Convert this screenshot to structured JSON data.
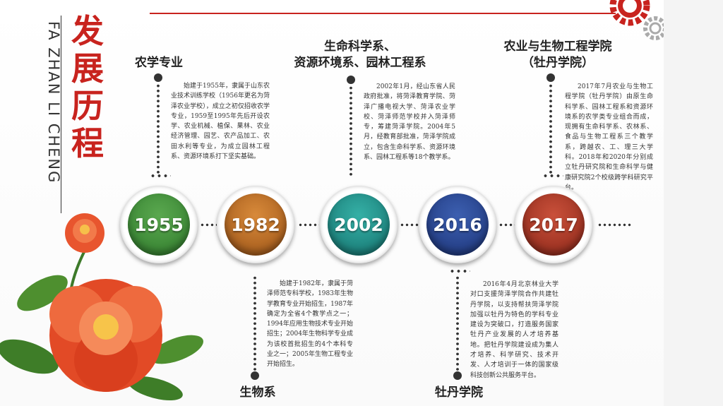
{
  "title": {
    "chinese": "发展历程",
    "pinyin": "FA ZHAN LI CHENG"
  },
  "colors": {
    "accent": "#c8231e",
    "y1955": "#3d8b37",
    "y1982": "#b5651d",
    "y2002": "#1e8e88",
    "y2016": "#25428f",
    "y2017": "#a33122"
  },
  "milestones": [
    {
      "year": "1955",
      "heading": "农学专业",
      "text": "始建于1955年，隶属于山东农业技术训练学校（1956年更名为菏泽农业学校），成立之初仅招收农学专业，1959至1995年先后开设农学、农业机械、植保、果林、农业经济管理、园艺、农产品加工、农田水利等专业，为成立园林工程系、资源环境系打下坚实基础。"
    },
    {
      "year": "1982",
      "heading": "生物系",
      "text": "始建于1982年，隶属于菏泽师范专科学校，1983年生物学教育专业开始招生，1987年确定为全省4个教学点之一；1994年应用生物技术专业开始招生；2004年生物科学专业成为该校首批招生的4个本科专业之一；2005年生物工程专业开始招生。"
    },
    {
      "year": "2002",
      "heading": "生命科学系、\n资源环境系、园林工程系",
      "heading_line1": "生命科学系、",
      "heading_line2": "资源环境系、园林工程系",
      "text": "2002年1月，经山东省人民政府批准，将菏泽教育学院、菏泽广播电视大学、菏泽农业学校、菏泽师范学校并入菏泽师专，筹建菏泽学院。2004年5月，经教育部批准，菏泽学院成立，包含生命科学系、资源环境系、园林工程系等18个教学系。"
    },
    {
      "year": "2016",
      "heading": "牡丹学院",
      "text": "2016年4月北京林业大学对口支援菏泽学院合作共建牡丹学院，以支持帮扶菏泽学院加强以牡丹为特色的学科专业建设为突破口，打造服务国家牡丹产业发展的人才培养基地。把牡丹学院建设成为集人才培养、科学研究、技术开发、人才培训于一体的国家级科技创新公共服务平台。"
    },
    {
      "year": "2017",
      "heading_line1": "农业与生物工程学院",
      "heading_line2": "（牡丹学院）",
      "text": "2017年7月农业与生物工程学院（牡丹学院）由原生命科学系、园林工程系和资源环境系的农学类专业组合而成，现拥有生命科学系、农林系、食品与生物工程系三个教学系，跨越农、工、理三大学科。2018年和2020年分别成立牡丹研究院和生命科学与健康研究院2个校级跨学科研究平台。"
    }
  ]
}
